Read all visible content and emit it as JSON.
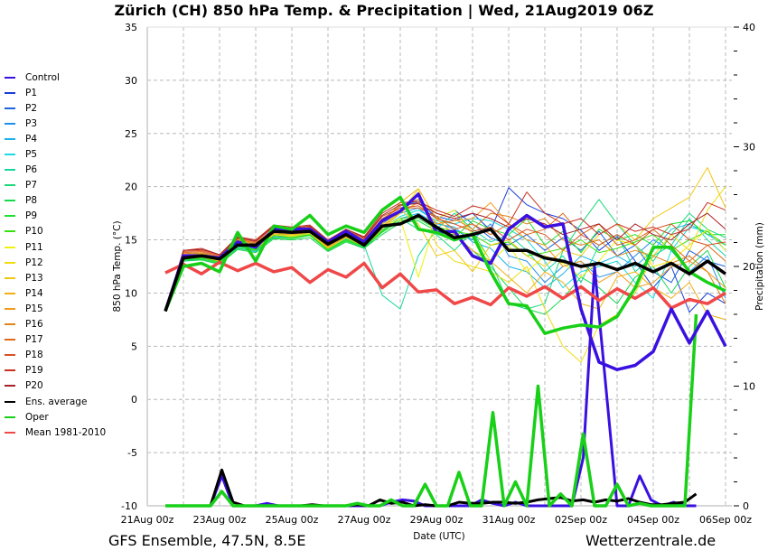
{
  "title": "Zürich  (CH)  850 hPa Temp. & Precipitation | Wed, 21Aug2019 06Z",
  "footer": {
    "left": "GFS Ensemble, 47.5N, 8.5E",
    "right": "Wetterzentrale.de"
  },
  "legend": [
    {
      "label": "Control",
      "color": "#3a10e0"
    },
    {
      "label": "P1",
      "color": "#1a3ed8"
    },
    {
      "label": "P2",
      "color": "#1e64e0"
    },
    {
      "label": "P3",
      "color": "#1e90f0"
    },
    {
      "label": "P4",
      "color": "#18b4e8"
    },
    {
      "label": "P5",
      "color": "#1adce0"
    },
    {
      "label": "P6",
      "color": "#18d8a0"
    },
    {
      "label": "P7",
      "color": "#18d878"
    },
    {
      "label": "P8",
      "color": "#18d850"
    },
    {
      "label": "P9",
      "color": "#1ee030"
    },
    {
      "label": "P10",
      "color": "#38e010"
    },
    {
      "label": "P11",
      "color": "#f0f010"
    },
    {
      "label": "P12",
      "color": "#f0dc10"
    },
    {
      "label": "P13",
      "color": "#f0c810"
    },
    {
      "label": "P14",
      "color": "#f0b010"
    },
    {
      "label": "P15",
      "color": "#f09c18"
    },
    {
      "label": "P16",
      "color": "#e08418"
    },
    {
      "label": "P17",
      "color": "#e06818"
    },
    {
      "label": "P18",
      "color": "#d85020"
    },
    {
      "label": "P19",
      "color": "#c83020"
    },
    {
      "label": "P20",
      "color": "#a82028"
    },
    {
      "label": "Ens. average",
      "color": "#000000"
    },
    {
      "label": "Oper",
      "color": "#18d018"
    },
    {
      "label": "Mean 1981-2010",
      "color": "#f04848"
    }
  ],
  "chart_data": {
    "type": "line",
    "title": "Zürich  (CH)  850 hPa Temp. & Precipitation | Wed, 21Aug2019 06Z",
    "xlabel": "Date (UTC)",
    "ylabel": "850 hPa Temp. (°C)",
    "y2label": "Precipitation (mm)",
    "ylim": [
      -10,
      35
    ],
    "y2lim": [
      0,
      40
    ],
    "yticks": [
      "35",
      "30",
      "25",
      "20",
      "15",
      "10",
      "5",
      "0",
      "-5",
      "-10"
    ],
    "y2ticks": [
      "40",
      "30",
      "20",
      "10",
      "0"
    ],
    "xlim_hours": [
      0,
      384
    ],
    "xticks": [
      "21Aug 00z",
      "23Aug 00z",
      "25Aug 00z",
      "27Aug 00z",
      "29Aug 00z",
      "31Aug 00z",
      "02Sep 00z",
      "04Sep 00z",
      "06Sep 00z"
    ],
    "x_start_hour": 12,
    "x_step_hours": 12,
    "grid": true,
    "legend_position": "left",
    "temperature": {
      "Ens. average": [
        8.3,
        13.3,
        13.5,
        13.2,
        14.5,
        14.5,
        15.8,
        15.7,
        15.8,
        14.6,
        15.5,
        14.5,
        16.3,
        16.5,
        17.3,
        16.2,
        15.2,
        15.5,
        16.0,
        14.0,
        14.0,
        13.3,
        13.0,
        12.5,
        12.8,
        12.2,
        12.8,
        12.0,
        12.8,
        11.8,
        13.0,
        11.8
      ],
      "Oper": [
        8.3,
        12.5,
        12.8,
        12.0,
        15.7,
        13.0,
        16.3,
        16.0,
        17.3,
        15.5,
        16.3,
        15.7,
        17.8,
        19.0,
        16.0,
        15.7,
        15.0,
        15.5,
        12.0,
        9.0,
        8.8,
        6.2,
        6.7,
        7.0,
        6.8,
        7.8,
        10.5,
        14.3,
        14.3,
        12.0,
        11.0,
        10.2
      ],
      "Control": [
        8.3,
        13.5,
        13.5,
        13.3,
        14.8,
        14.3,
        16.0,
        16.0,
        16.0,
        14.8,
        15.8,
        14.8,
        16.8,
        17.7,
        19.3,
        15.7,
        15.8,
        13.5,
        12.8,
        16.0,
        17.3,
        16.2,
        16.5,
        8.5,
        3.5,
        2.8,
        3.2,
        4.5,
        8.5,
        5.3,
        8.3,
        5.0
      ],
      "Mean 1981-2010": [
        11.9,
        12.7,
        11.8,
        12.9,
        12.1,
        12.8,
        12.0,
        12.4,
        11.0,
        12.2,
        11.5,
        12.8,
        10.5,
        11.8,
        10.1,
        10.3,
        9.0,
        9.6,
        8.9,
        10.5,
        9.7,
        10.6,
        9.5,
        10.6,
        9.3,
        10.4,
        9.5,
        10.5,
        8.6,
        9.4,
        9.0,
        10.0
      ],
      "members": [
        [
          8.3,
          13.6,
          13.7,
          13.3,
          14.9,
          14.6,
          16.0,
          15.8,
          16.1,
          14.6,
          15.7,
          14.9,
          16.9,
          18.2,
          18.5,
          17.2,
          16.8,
          17.5,
          15.9,
          19.9,
          18.3,
          17.5,
          17.0,
          15.9,
          14.0,
          15.3,
          13.0,
          10.5,
          12.5,
          8.2,
          10.0,
          9.0
        ],
        [
          8.3,
          13.4,
          13.5,
          13.1,
          14.6,
          14.4,
          15.7,
          15.6,
          16.0,
          14.5,
          15.5,
          14.6,
          16.5,
          17.8,
          18.8,
          17.0,
          17.8,
          16.5,
          15.2,
          14.5,
          15.5,
          14.0,
          15.2,
          14.0,
          15.8,
          13.5,
          14.5,
          12.0,
          11.0,
          14.0,
          13.0,
          12.5
        ],
        [
          8.3,
          13.2,
          13.4,
          13.0,
          14.4,
          14.2,
          15.5,
          15.4,
          15.7,
          14.3,
          15.3,
          14.4,
          16.0,
          17.5,
          18.0,
          16.6,
          16.0,
          15.0,
          16.5,
          13.5,
          13.0,
          11.0,
          12.5,
          13.0,
          11.5,
          12.0,
          13.5,
          15.0,
          14.0,
          12.0,
          13.5,
          9.5
        ],
        [
          8.3,
          13.0,
          13.2,
          12.8,
          14.2,
          13.9,
          15.3,
          15.2,
          15.5,
          14.0,
          15.0,
          14.2,
          15.8,
          17.0,
          17.5,
          16.5,
          16.2,
          14.8,
          14.2,
          12.5,
          12.0,
          10.5,
          11.8,
          13.5,
          12.8,
          13.5,
          12.5,
          14.0,
          16.0,
          16.5,
          15.5,
          14.5
        ],
        [
          8.3,
          13.1,
          13.3,
          12.9,
          14.3,
          14.1,
          15.4,
          15.3,
          15.6,
          14.1,
          15.1,
          14.3,
          16.0,
          17.2,
          17.8,
          16.8,
          16.5,
          17.0,
          16.8,
          16.0,
          15.0,
          13.0,
          10.5,
          12.0,
          12.5,
          13.0,
          11.0,
          9.5,
          14.0,
          16.2,
          15.8,
          14.0
        ],
        [
          8.3,
          13.3,
          13.4,
          13.0,
          14.5,
          14.2,
          15.5,
          15.4,
          15.6,
          14.2,
          15.2,
          14.5,
          9.8,
          8.5,
          13.5,
          16.0,
          17.5,
          16.0,
          14.8,
          15.5,
          14.0,
          12.0,
          13.5,
          11.0,
          14.5,
          15.5,
          12.0,
          13.5,
          14.5,
          17.0,
          15.0,
          13.5
        ],
        [
          8.3,
          13.2,
          13.3,
          12.9,
          14.4,
          14.1,
          15.4,
          15.3,
          15.5,
          14.1,
          15.1,
          14.4,
          15.9,
          17.0,
          16.0,
          15.5,
          14.0,
          15.8,
          13.0,
          9.0,
          8.5,
          9.0,
          14.0,
          16.5,
          18.8,
          16.5,
          14.5,
          13.0,
          15.5,
          17.5,
          16.0,
          15.2
        ],
        [
          8.3,
          13.0,
          13.1,
          12.7,
          14.1,
          13.8,
          15.1,
          15.0,
          15.2,
          13.9,
          14.8,
          14.2,
          15.5,
          16.6,
          16.8,
          15.8,
          15.5,
          14.0,
          12.5,
          10.5,
          8.5,
          8.0,
          9.5,
          11.5,
          10.5,
          9.0,
          11.5,
          12.5,
          10.0,
          12.5,
          14.0,
          10.5
        ],
        [
          8.3,
          13.1,
          13.2,
          12.8,
          14.2,
          14.0,
          15.2,
          15.1,
          15.4,
          14.0,
          14.9,
          14.3,
          15.7,
          16.8,
          17.0,
          16.0,
          15.2,
          16.8,
          16.0,
          15.5,
          17.0,
          14.5,
          15.8,
          13.8,
          16.0,
          15.0,
          15.5,
          14.5,
          16.5,
          16.8,
          15.5,
          15.5
        ],
        [
          8.3,
          13.2,
          13.3,
          12.9,
          14.4,
          14.1,
          15.4,
          15.2,
          15.5,
          14.1,
          15.0,
          14.4,
          15.8,
          17.0,
          17.2,
          16.2,
          15.8,
          15.5,
          14.5,
          14.8,
          13.5,
          13.8,
          14.2,
          15.0,
          13.8,
          14.2,
          14.8,
          15.5,
          14.0,
          15.0,
          15.8,
          14.5
        ],
        [
          8.3,
          13.4,
          13.5,
          13.0,
          15.2,
          14.3,
          15.6,
          15.4,
          15.7,
          14.3,
          15.3,
          14.5,
          16.2,
          17.0,
          11.5,
          17.0,
          17.8,
          15.5,
          13.0,
          14.5,
          12.0,
          13.5,
          12.8,
          11.5,
          13.0,
          15.0,
          14.5,
          12.5,
          13.0,
          14.5,
          16.0,
          14.0
        ],
        [
          8.3,
          13.3,
          13.4,
          13.0,
          15.5,
          14.2,
          15.5,
          15.3,
          15.6,
          14.2,
          15.2,
          14.4,
          16.0,
          17.5,
          19.8,
          14.5,
          13.0,
          12.5,
          12.0,
          11.0,
          12.5,
          8.5,
          5.0,
          3.5,
          7.0,
          8.0,
          10.0,
          13.5,
          15.5,
          14.0,
          17.8,
          20.0
        ],
        [
          8.3,
          13.5,
          13.6,
          13.1,
          14.7,
          14.4,
          15.7,
          15.6,
          15.8,
          14.4,
          15.4,
          14.7,
          16.3,
          17.8,
          16.5,
          13.5,
          14.0,
          12.0,
          14.5,
          15.0,
          13.5,
          12.5,
          14.0,
          13.5,
          15.5,
          16.5,
          15.0,
          17.0,
          18.0,
          19.0,
          21.8,
          18.0
        ],
        [
          8.3,
          13.6,
          13.7,
          13.2,
          14.8,
          14.5,
          15.8,
          15.7,
          15.9,
          14.5,
          15.5,
          14.8,
          16.5,
          18.5,
          19.8,
          17.0,
          15.5,
          14.0,
          13.0,
          11.5,
          10.0,
          12.0,
          11.0,
          9.0,
          8.5,
          11.5,
          12.0,
          10.5,
          9.5,
          11.0,
          8.0,
          7.5
        ],
        [
          8.3,
          13.5,
          13.6,
          13.1,
          14.6,
          14.3,
          15.6,
          15.5,
          15.7,
          14.3,
          15.3,
          14.6,
          16.2,
          17.6,
          18.5,
          16.5,
          16.8,
          17.0,
          18.5,
          16.5,
          15.0,
          14.5,
          12.5,
          13.0,
          11.0,
          12.0,
          10.5,
          11.0,
          12.5,
          13.0,
          12.0,
          10.5
        ],
        [
          8.3,
          13.7,
          13.8,
          13.3,
          15.0,
          14.6,
          15.9,
          15.8,
          16.0,
          14.6,
          15.6,
          14.9,
          16.8,
          18.2,
          18.8,
          17.5,
          17.0,
          16.0,
          17.5,
          17.2,
          16.5,
          17.0,
          15.0,
          14.5,
          15.0,
          13.5,
          14.0,
          13.5,
          12.8,
          13.5,
          12.0,
          9.0
        ],
        [
          8.3,
          13.8,
          13.9,
          13.4,
          15.1,
          14.7,
          16.0,
          15.9,
          16.1,
          14.7,
          15.7,
          15.0,
          17.0,
          18.0,
          18.0,
          17.2,
          16.0,
          16.5,
          15.5,
          16.5,
          15.5,
          16.0,
          17.5,
          15.5,
          16.5,
          14.5,
          15.0,
          16.0,
          14.5,
          13.0,
          14.5,
          13.0
        ],
        [
          8.3,
          13.9,
          14.0,
          13.5,
          15.2,
          14.8,
          16.2,
          16.0,
          16.2,
          14.8,
          15.9,
          15.1,
          17.2,
          18.0,
          18.2,
          17.0,
          16.5,
          15.8,
          16.2,
          15.0,
          16.0,
          15.5,
          14.0,
          15.5,
          14.5,
          15.5,
          14.5,
          16.0,
          16.5,
          15.0,
          14.5,
          14.8
        ],
        [
          8.3,
          14.0,
          14.2,
          13.6,
          15.3,
          15.0,
          16.4,
          16.2,
          16.4,
          15.0,
          16.0,
          15.3,
          17.5,
          18.5,
          18.6,
          17.8,
          17.2,
          18.2,
          17.8,
          16.5,
          19.5,
          17.5,
          16.5,
          17.0,
          15.5,
          16.5,
          15.8,
          16.2,
          15.5,
          16.0,
          18.5,
          17.8
        ],
        [
          8.3,
          14.0,
          14.1,
          13.6,
          15.2,
          14.9,
          16.3,
          16.1,
          16.3,
          14.9,
          16.0,
          15.2,
          17.3,
          18.3,
          18.4,
          17.5,
          17.0,
          17.5,
          17.0,
          16.2,
          17.0,
          16.5,
          15.5,
          16.0,
          16.5,
          15.0,
          16.5,
          15.5,
          15.0,
          16.5,
          17.5,
          16.0
        ]
      ]
    },
    "precipitation": {
      "Ens. average": [
        0,
        0,
        0,
        0,
        0,
        3.0,
        0.3,
        0,
        0,
        0,
        0,
        0,
        0,
        0.1,
        0,
        0,
        0,
        0.1,
        0,
        0.5,
        0.2,
        0.3,
        0,
        0.1,
        0,
        0,
        0.3,
        0.2,
        0.2,
        0.3,
        0.3,
        0.2,
        0.3,
        0.5,
        0.6,
        0.7,
        0.4,
        0.5,
        0.3,
        0.5,
        0.4,
        0.6,
        0.3,
        0.1,
        0.1,
        0.2,
        0.3,
        1.0
      ],
      "Oper": [
        0,
        0,
        0,
        0,
        0,
        1.2,
        0,
        0,
        0,
        0,
        0,
        0,
        0,
        0,
        0,
        0,
        0,
        0.2,
        0,
        0,
        0.5,
        0,
        0,
        1.8,
        0,
        0,
        2.8,
        0,
        0,
        7.8,
        0,
        2.0,
        0,
        10.0,
        0,
        1.0,
        0,
        6.0,
        0,
        0,
        1.8,
        0,
        0.2,
        0,
        0,
        0,
        0,
        16.0
      ],
      "Control": [
        0,
        0,
        0,
        0,
        0,
        2.5,
        0,
        0,
        0,
        0.2,
        0,
        0,
        0,
        0,
        0,
        0,
        0,
        0,
        0,
        0,
        0.3,
        0.5,
        0.4,
        0,
        0,
        0,
        0,
        0,
        0.5,
        0.2,
        0,
        0.3,
        0,
        0,
        0,
        0,
        0,
        4.0,
        20.0,
        10.0,
        0,
        0,
        2.5,
        0.5,
        0,
        0.3,
        0,
        0
      ]
    }
  }
}
